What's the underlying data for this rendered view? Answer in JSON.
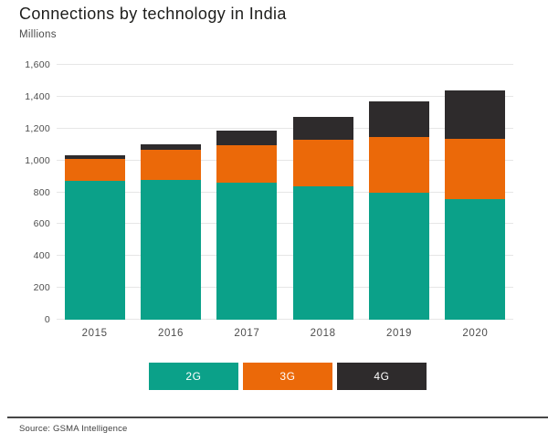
{
  "header": {
    "title": "Connections by technology in India",
    "subtitle": "Millions"
  },
  "footer": {
    "source": "Source: GSMA Intelligence"
  },
  "colors": {
    "teal_2g": "#0ba189",
    "orange_3g": "#eb6909",
    "dark_4g": "#2e2b2c",
    "gridline": "#e6e6e6",
    "axis_text": "#4d4d4d"
  },
  "legend": [
    {
      "label": "2G",
      "color": "#0ba189"
    },
    {
      "label": "3G",
      "color": "#eb6909"
    },
    {
      "label": "4G",
      "color": "#2e2b2c"
    }
  ],
  "chart_data": {
    "type": "bar",
    "stacked": true,
    "title": "Connections by technology in India",
    "ylabel": "Millions",
    "xlabel": "",
    "categories": [
      "2015",
      "2016",
      "2017",
      "2018",
      "2019",
      "2020"
    ],
    "series": [
      {
        "name": "2G",
        "color": "#0ba189",
        "values": [
          870,
          875,
          860,
          840,
          800,
          755
        ]
      },
      {
        "name": "3G",
        "color": "#eb6909",
        "values": [
          140,
          190,
          235,
          290,
          345,
          380
        ]
      },
      {
        "name": "4G",
        "color": "#2e2b2c",
        "values": [
          20,
          35,
          95,
          145,
          225,
          305
        ]
      }
    ],
    "totals": [
      1030,
      1100,
      1190,
      1275,
      1370,
      1440
    ],
    "ylim": [
      0,
      1600
    ],
    "yticks": [
      {
        "value": 0,
        "label": "0"
      },
      {
        "value": 200,
        "label": "200"
      },
      {
        "value": 400,
        "label": "400"
      },
      {
        "value": 600,
        "label": "600"
      },
      {
        "value": 800,
        "label": "800"
      },
      {
        "value": 1000,
        "label": "1,000"
      },
      {
        "value": 1200,
        "label": "1,200"
      },
      {
        "value": 1400,
        "label": "1,400"
      },
      {
        "value": 1600,
        "label": "1,600"
      }
    ],
    "grid": true,
    "legend_position": "bottom"
  }
}
